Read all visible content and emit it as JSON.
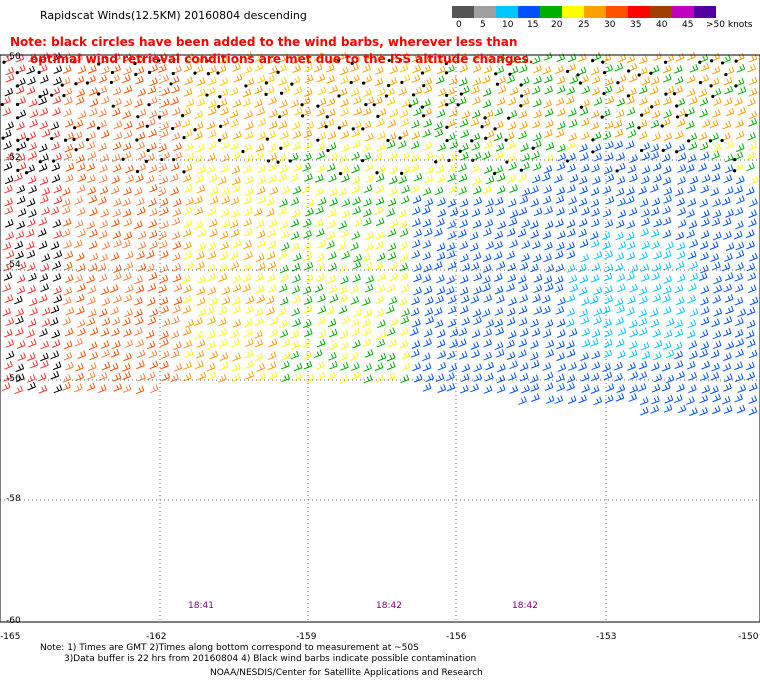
{
  "header": {
    "title": "Rapidscat Winds(12.5KM) 20160804 descending",
    "scale_labels": [
      "0",
      "5",
      "10",
      "15",
      "20",
      "25",
      "30",
      "35",
      "40",
      "45",
      ">50 knots"
    ],
    "scale_colors": [
      "#555555",
      "#a0a0a0",
      "#00c8ff",
      "#0050ff",
      "#00b000",
      "#ffff00",
      "#ffa000",
      "#ff5000",
      "#ff0000",
      "#a04000",
      "#c000c0",
      "#5000a0"
    ]
  },
  "note": {
    "line1": "Note: black circles have been added to the wind barbs, wherever less than",
    "line2": "optimal wind retrieval conditions are met due to the ISS altitude changes."
  },
  "map": {
    "lat_labels": [
      "-50",
      "-52",
      "-54",
      "-56",
      "-58",
      "-60"
    ],
    "lon_labels": [
      "-165",
      "-162",
      "-159",
      "-156",
      "-153",
      "-150"
    ],
    "time_labels": [
      "18:41",
      "18:42",
      "18:42"
    ]
  },
  "footer": {
    "line1": "Note: 1) Times are GMT 2)Times along bottom correspond to measurement at ~50S",
    "line2": "3)Data buffer is 22 hrs from 20160804 4) Black wind barbs indicate possible contamination",
    "line3": "NOAA/NESDIS/Center for Satellite Applications and Research"
  }
}
